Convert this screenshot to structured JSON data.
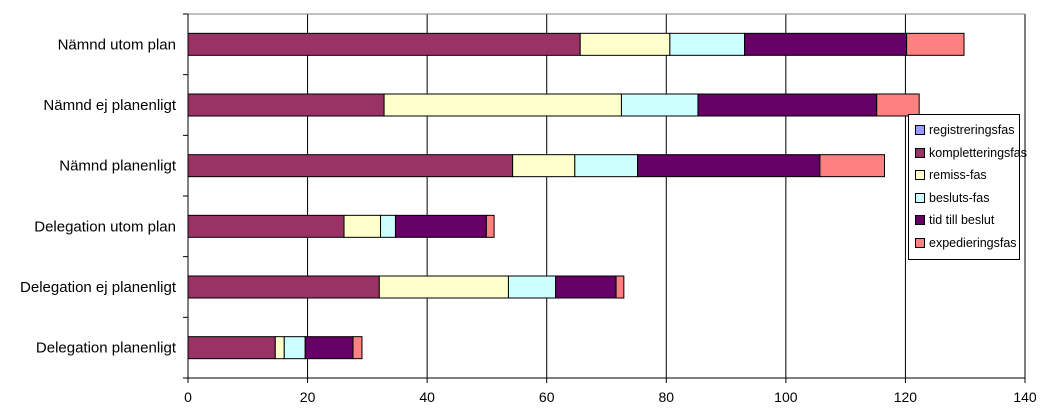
{
  "chart_data": {
    "type": "bar",
    "orientation": "horizontal",
    "stacked": true,
    "categories": [
      "Nämnd utom plan",
      "Nämnd ej planenligt",
      "Nämnd planenligt",
      "Delegation utom plan",
      "Delegation ej planenligt",
      "Delegation planenligt"
    ],
    "series": [
      {
        "name": "registreringsfas",
        "color": "#9999ff",
        "values": [
          0,
          0,
          0,
          0,
          0,
          0
        ]
      },
      {
        "name": "kompletteringsfas",
        "color": "#993366",
        "values": [
          65.6,
          32.8,
          54.3,
          26.1,
          32.0,
          14.6
        ]
      },
      {
        "name": "remiss-fas",
        "color": "#ffffcc",
        "values": [
          15.0,
          39.7,
          10.4,
          6.1,
          21.6,
          1.5
        ]
      },
      {
        "name": "besluts-fas",
        "color": "#ccffff",
        "values": [
          12.5,
          12.8,
          10.5,
          2.5,
          7.9,
          3.5
        ]
      },
      {
        "name": "tid till beslut",
        "color": "#660066",
        "values": [
          27.1,
          29.9,
          30.5,
          15.2,
          10.1,
          8.0
        ]
      },
      {
        "name": "expedieringsfas",
        "color": "#ff8080",
        "values": [
          9.6,
          7.1,
          10.8,
          1.3,
          1.3,
          1.5
        ]
      }
    ],
    "xlim": [
      0,
      140
    ],
    "xticks": [
      "0",
      "20",
      "40",
      "60",
      "80",
      "100",
      "120",
      "140"
    ],
    "grid": "vertical",
    "legend_position": "right"
  }
}
